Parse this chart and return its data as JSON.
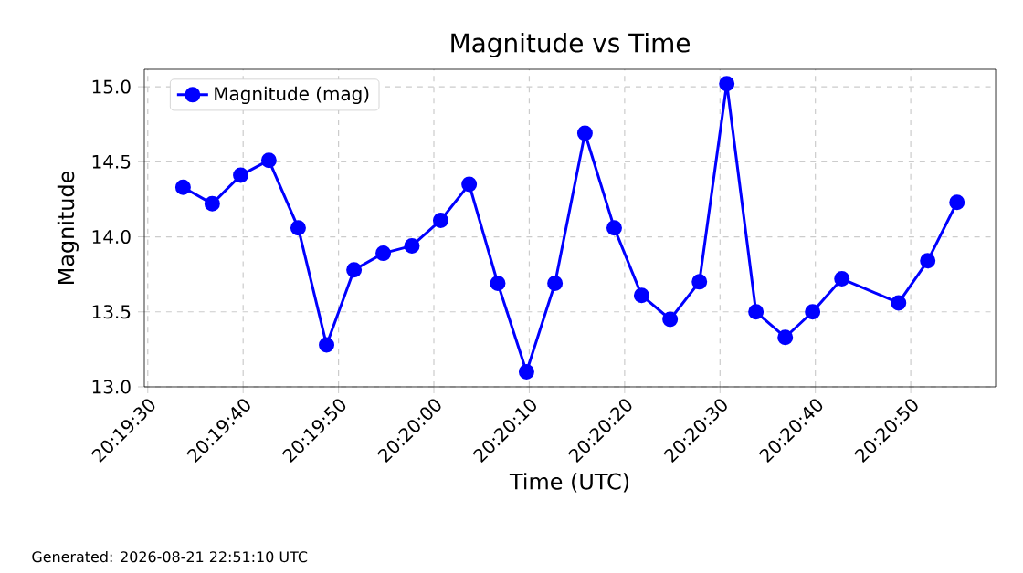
{
  "chart_data": {
    "type": "line",
    "title": "Magnitude vs Time",
    "xlabel": "Time (UTC)",
    "ylabel": "Magnitude",
    "annotations": [
      "Generated: 2026-08-21 22:51:10 UTC"
    ],
    "x": [
      20.326028,
      20.326878,
      20.327708,
      20.328528,
      20.329381,
      20.330208,
      20.331008,
      20.331858,
      20.332694,
      20.333531,
      20.334361,
      20.335194,
      20.336031,
      20.336861,
      20.337733,
      20.338586,
      20.339383,
      20.340214,
      20.341067,
      20.341864,
      20.342714,
      20.343567,
      20.344364,
      20.345217,
      20.346867,
      20.347717,
      20.348569
    ],
    "series": [
      {
        "name": "Magnitude (mag)",
        "color": "#0000ff",
        "values": [
          14.33,
          14.22,
          14.41,
          14.51,
          14.06,
          13.28,
          13.78,
          13.89,
          13.94,
          14.11,
          14.35,
          13.69,
          13.1,
          13.69,
          14.69,
          14.06,
          13.61,
          13.45,
          13.7,
          15.02,
          13.5,
          13.33,
          13.5,
          13.72,
          13.56,
          13.84,
          14.23
        ]
      }
    ],
    "xlim": [
      20.3249,
      20.349694
    ],
    "ylim": [
      13.0,
      15.116
    ],
    "xticks": [
      {
        "value": 20.325,
        "label": "20:19:30"
      },
      {
        "value": 20.327778,
        "label": "20:19:40"
      },
      {
        "value": 20.330556,
        "label": "20:19:50"
      },
      {
        "value": 20.333333,
        "label": "20:20:00"
      },
      {
        "value": 20.336111,
        "label": "20:20:10"
      },
      {
        "value": 20.338889,
        "label": "20:20:20"
      },
      {
        "value": 20.341667,
        "label": "20:20:30"
      },
      {
        "value": 20.344444,
        "label": "20:20:40"
      },
      {
        "value": 20.347222,
        "label": "20:20:50"
      }
    ],
    "yticks": [
      {
        "value": 13.0,
        "label": "13.0"
      },
      {
        "value": 13.5,
        "label": "13.5"
      },
      {
        "value": 14.0,
        "label": "14.0"
      },
      {
        "value": 14.5,
        "label": "14.5"
      },
      {
        "value": 15.0,
        "label": "15.0"
      }
    ],
    "grid": true,
    "legend": "top left",
    "marker": "circle",
    "line_style": "solid"
  }
}
